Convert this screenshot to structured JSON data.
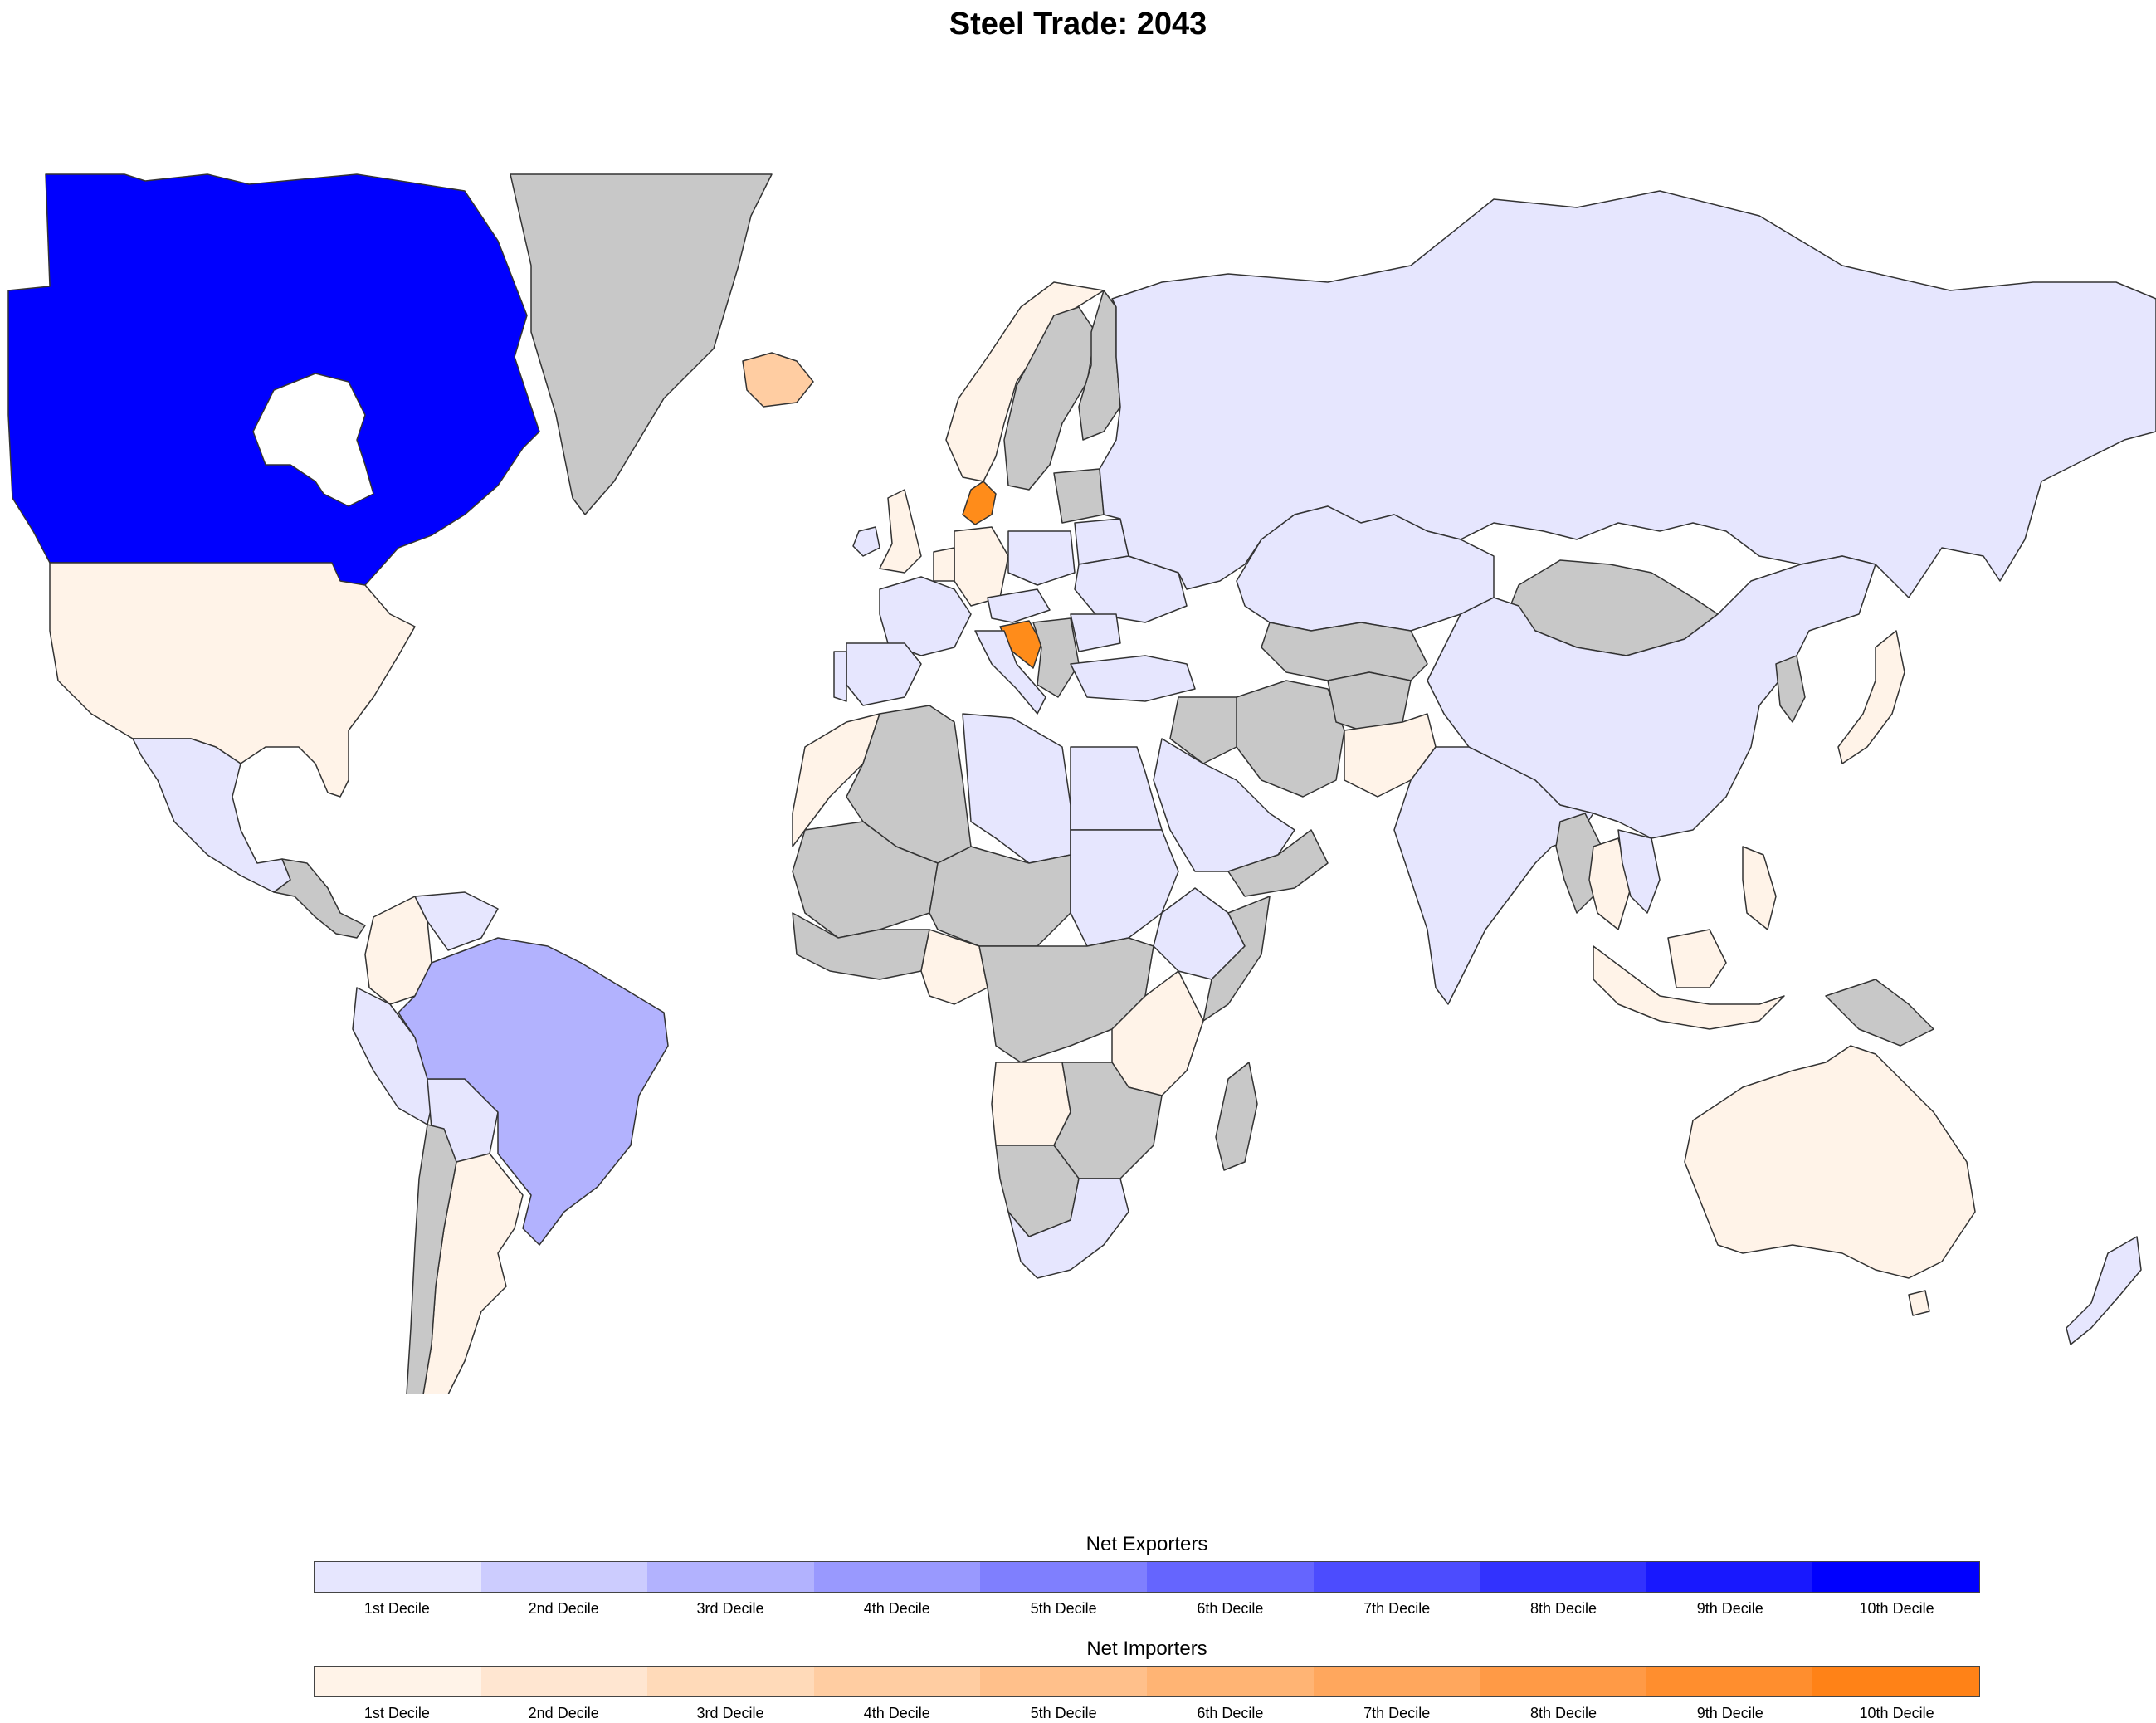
{
  "title": "Steel Trade: 2043",
  "colors": {
    "no_data": "#c8c8c8",
    "ocean": "#ffffff",
    "border": "#333333",
    "exporters": [
      "#e6e6fe",
      "#ccccfe",
      "#b2b2fe",
      "#9999fe",
      "#7f7ffe",
      "#6565fe",
      "#4c4cfe",
      "#3232fe",
      "#1818fe",
      "#0000fe"
    ],
    "importers": [
      "#fff3e8",
      "#ffe6d1",
      "#ffdab9",
      "#ffcda2",
      "#ffc08b",
      "#ffb474",
      "#ffa75d",
      "#ff9a46",
      "#ff8e2e",
      "#ff8217"
    ]
  },
  "legend": {
    "exporters_title": "Net Exporters",
    "importers_title": "Net Importers",
    "labels": [
      "1st Decile",
      "2nd Decile",
      "3rd Decile",
      "4th Decile",
      "5th Decile",
      "6th Decile",
      "7th Decile",
      "8th Decile",
      "9th Decile",
      "10th Decile"
    ]
  },
  "regions": [
    {
      "name": "Canada",
      "class": "exporter",
      "decile": 10
    },
    {
      "name": "United States",
      "class": "importer",
      "decile": 1
    },
    {
      "name": "Greenland",
      "class": "no-data"
    },
    {
      "name": "Iceland",
      "class": "importer",
      "decile": 4
    },
    {
      "name": "Mexico",
      "class": "exporter",
      "decile": 1
    },
    {
      "name": "Brazil",
      "class": "exporter",
      "decile": 3
    },
    {
      "name": "Argentina",
      "class": "importer",
      "decile": 1
    },
    {
      "name": "Russia",
      "class": "exporter",
      "decile": 1
    },
    {
      "name": "China",
      "class": "exporter",
      "decile": 1
    },
    {
      "name": "India",
      "class": "exporter",
      "decile": 1
    },
    {
      "name": "Mongolia",
      "class": "no-data"
    },
    {
      "name": "Australia",
      "class": "importer",
      "decile": 1
    },
    {
      "name": "New Zealand",
      "class": "exporter",
      "decile": 1
    },
    {
      "name": "Denmark",
      "class": "importer",
      "decile": 9
    },
    {
      "name": "Croatia",
      "class": "importer",
      "decile": 9
    },
    {
      "name": "Norway",
      "class": "importer",
      "decile": 1
    },
    {
      "name": "Sweden",
      "class": "no-data"
    },
    {
      "name": "Japan",
      "class": "importer",
      "decile": 1
    },
    {
      "name": "South Africa",
      "class": "exporter",
      "decile": 1
    },
    {
      "name": "Madagascar",
      "class": "no-data"
    },
    {
      "name": "Saudi Arabia",
      "class": "exporter",
      "decile": 1
    },
    {
      "name": "Iran",
      "class": "no-data"
    }
  ]
}
